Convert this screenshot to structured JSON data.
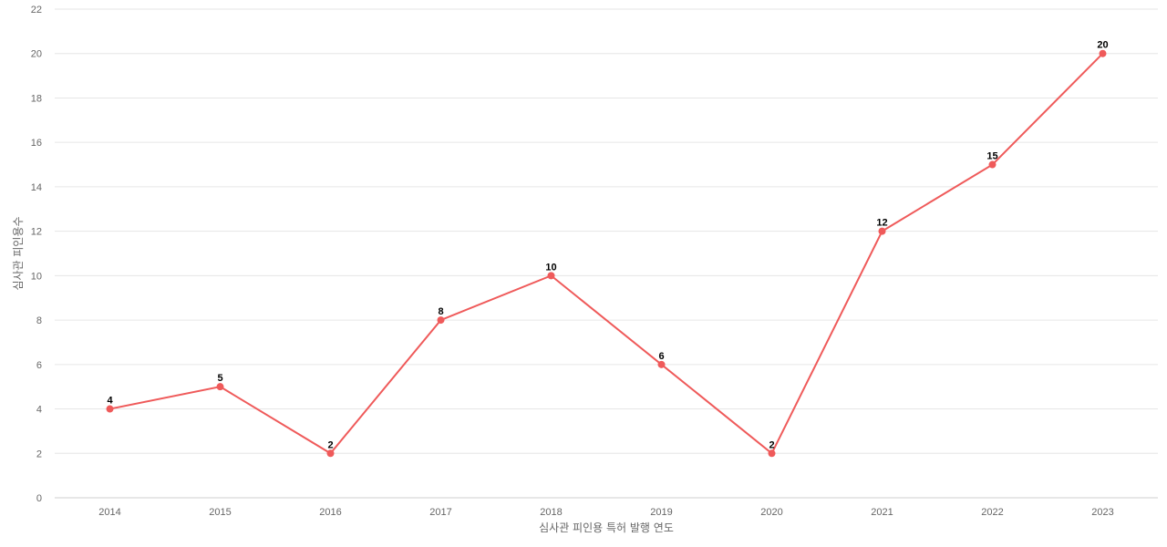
{
  "chart_data": {
    "type": "line",
    "categories": [
      "2014",
      "2015",
      "2016",
      "2017",
      "2018",
      "2019",
      "2020",
      "2021",
      "2022",
      "2023"
    ],
    "series": [
      {
        "values": [
          4,
          5,
          2,
          8,
          10,
          6,
          2,
          12,
          15,
          20
        ],
        "color": "#ef5a5a"
      }
    ],
    "xlabel": "심사관 피인용 특허 발행 연도",
    "ylabel": "심사관 피인용수",
    "ylim": [
      0,
      22
    ],
    "yticks": [
      0,
      2,
      4,
      6,
      8,
      10,
      12,
      14,
      16,
      18,
      20,
      22
    ],
    "data_labels": true,
    "grid": true
  }
}
